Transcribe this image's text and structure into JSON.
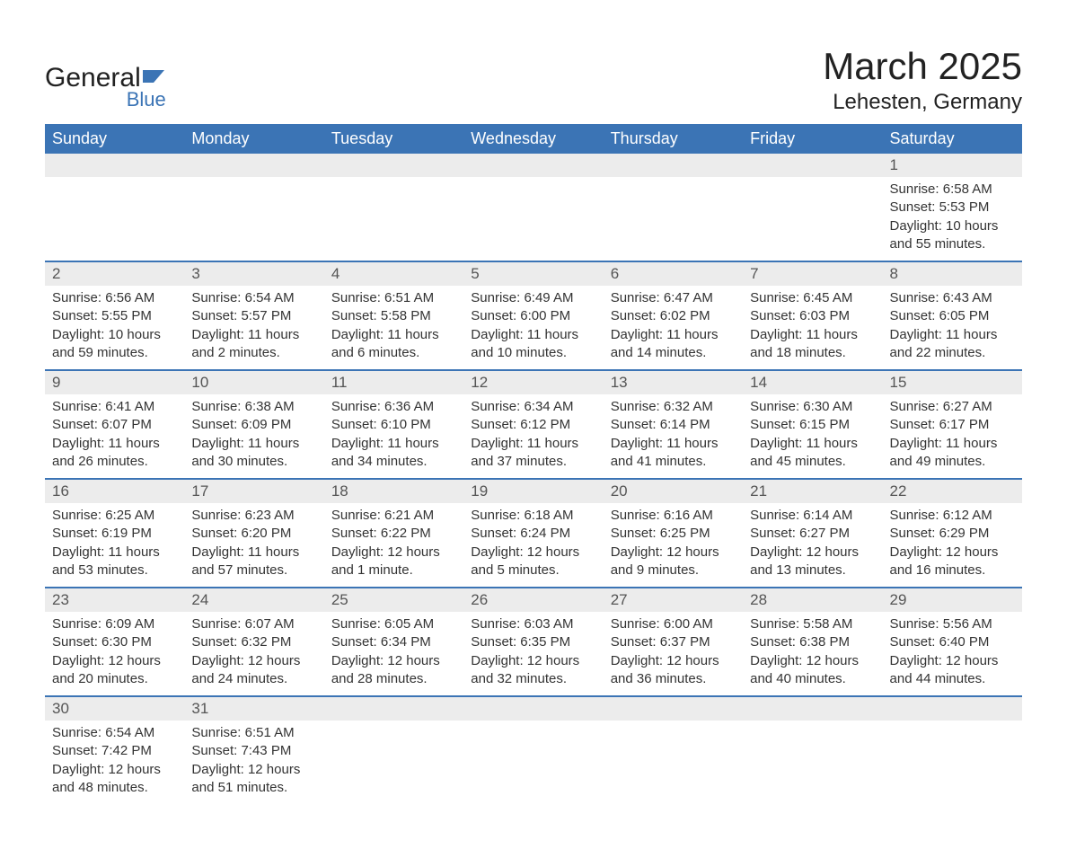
{
  "logo": {
    "text_general": "General",
    "text_blue": "Blue",
    "shape_color": "#3b74b5"
  },
  "header": {
    "month_title": "March 2025",
    "location": "Lehesten, Germany"
  },
  "colors": {
    "header_bg": "#3b74b5",
    "header_text": "#ffffff",
    "day_bg": "#ececec",
    "day_text": "#555555",
    "detail_text": "#333333",
    "row_border": "#3b74b5"
  },
  "days_of_week": [
    "Sunday",
    "Monday",
    "Tuesday",
    "Wednesday",
    "Thursday",
    "Friday",
    "Saturday"
  ],
  "weeks": [
    {
      "days": [
        null,
        null,
        null,
        null,
        null,
        null,
        {
          "num": "1",
          "sunrise": "Sunrise: 6:58 AM",
          "sunset": "Sunset: 5:53 PM",
          "daylight1": "Daylight: 10 hours",
          "daylight2": "and 55 minutes."
        }
      ]
    },
    {
      "days": [
        {
          "num": "2",
          "sunrise": "Sunrise: 6:56 AM",
          "sunset": "Sunset: 5:55 PM",
          "daylight1": "Daylight: 10 hours",
          "daylight2": "and 59 minutes."
        },
        {
          "num": "3",
          "sunrise": "Sunrise: 6:54 AM",
          "sunset": "Sunset: 5:57 PM",
          "daylight1": "Daylight: 11 hours",
          "daylight2": "and 2 minutes."
        },
        {
          "num": "4",
          "sunrise": "Sunrise: 6:51 AM",
          "sunset": "Sunset: 5:58 PM",
          "daylight1": "Daylight: 11 hours",
          "daylight2": "and 6 minutes."
        },
        {
          "num": "5",
          "sunrise": "Sunrise: 6:49 AM",
          "sunset": "Sunset: 6:00 PM",
          "daylight1": "Daylight: 11 hours",
          "daylight2": "and 10 minutes."
        },
        {
          "num": "6",
          "sunrise": "Sunrise: 6:47 AM",
          "sunset": "Sunset: 6:02 PM",
          "daylight1": "Daylight: 11 hours",
          "daylight2": "and 14 minutes."
        },
        {
          "num": "7",
          "sunrise": "Sunrise: 6:45 AM",
          "sunset": "Sunset: 6:03 PM",
          "daylight1": "Daylight: 11 hours",
          "daylight2": "and 18 minutes."
        },
        {
          "num": "8",
          "sunrise": "Sunrise: 6:43 AM",
          "sunset": "Sunset: 6:05 PM",
          "daylight1": "Daylight: 11 hours",
          "daylight2": "and 22 minutes."
        }
      ]
    },
    {
      "days": [
        {
          "num": "9",
          "sunrise": "Sunrise: 6:41 AM",
          "sunset": "Sunset: 6:07 PM",
          "daylight1": "Daylight: 11 hours",
          "daylight2": "and 26 minutes."
        },
        {
          "num": "10",
          "sunrise": "Sunrise: 6:38 AM",
          "sunset": "Sunset: 6:09 PM",
          "daylight1": "Daylight: 11 hours",
          "daylight2": "and 30 minutes."
        },
        {
          "num": "11",
          "sunrise": "Sunrise: 6:36 AM",
          "sunset": "Sunset: 6:10 PM",
          "daylight1": "Daylight: 11 hours",
          "daylight2": "and 34 minutes."
        },
        {
          "num": "12",
          "sunrise": "Sunrise: 6:34 AM",
          "sunset": "Sunset: 6:12 PM",
          "daylight1": "Daylight: 11 hours",
          "daylight2": "and 37 minutes."
        },
        {
          "num": "13",
          "sunrise": "Sunrise: 6:32 AM",
          "sunset": "Sunset: 6:14 PM",
          "daylight1": "Daylight: 11 hours",
          "daylight2": "and 41 minutes."
        },
        {
          "num": "14",
          "sunrise": "Sunrise: 6:30 AM",
          "sunset": "Sunset: 6:15 PM",
          "daylight1": "Daylight: 11 hours",
          "daylight2": "and 45 minutes."
        },
        {
          "num": "15",
          "sunrise": "Sunrise: 6:27 AM",
          "sunset": "Sunset: 6:17 PM",
          "daylight1": "Daylight: 11 hours",
          "daylight2": "and 49 minutes."
        }
      ]
    },
    {
      "days": [
        {
          "num": "16",
          "sunrise": "Sunrise: 6:25 AM",
          "sunset": "Sunset: 6:19 PM",
          "daylight1": "Daylight: 11 hours",
          "daylight2": "and 53 minutes."
        },
        {
          "num": "17",
          "sunrise": "Sunrise: 6:23 AM",
          "sunset": "Sunset: 6:20 PM",
          "daylight1": "Daylight: 11 hours",
          "daylight2": "and 57 minutes."
        },
        {
          "num": "18",
          "sunrise": "Sunrise: 6:21 AM",
          "sunset": "Sunset: 6:22 PM",
          "daylight1": "Daylight: 12 hours",
          "daylight2": "and 1 minute."
        },
        {
          "num": "19",
          "sunrise": "Sunrise: 6:18 AM",
          "sunset": "Sunset: 6:24 PM",
          "daylight1": "Daylight: 12 hours",
          "daylight2": "and 5 minutes."
        },
        {
          "num": "20",
          "sunrise": "Sunrise: 6:16 AM",
          "sunset": "Sunset: 6:25 PM",
          "daylight1": "Daylight: 12 hours",
          "daylight2": "and 9 minutes."
        },
        {
          "num": "21",
          "sunrise": "Sunrise: 6:14 AM",
          "sunset": "Sunset: 6:27 PM",
          "daylight1": "Daylight: 12 hours",
          "daylight2": "and 13 minutes."
        },
        {
          "num": "22",
          "sunrise": "Sunrise: 6:12 AM",
          "sunset": "Sunset: 6:29 PM",
          "daylight1": "Daylight: 12 hours",
          "daylight2": "and 16 minutes."
        }
      ]
    },
    {
      "days": [
        {
          "num": "23",
          "sunrise": "Sunrise: 6:09 AM",
          "sunset": "Sunset: 6:30 PM",
          "daylight1": "Daylight: 12 hours",
          "daylight2": "and 20 minutes."
        },
        {
          "num": "24",
          "sunrise": "Sunrise: 6:07 AM",
          "sunset": "Sunset: 6:32 PM",
          "daylight1": "Daylight: 12 hours",
          "daylight2": "and 24 minutes."
        },
        {
          "num": "25",
          "sunrise": "Sunrise: 6:05 AM",
          "sunset": "Sunset: 6:34 PM",
          "daylight1": "Daylight: 12 hours",
          "daylight2": "and 28 minutes."
        },
        {
          "num": "26",
          "sunrise": "Sunrise: 6:03 AM",
          "sunset": "Sunset: 6:35 PM",
          "daylight1": "Daylight: 12 hours",
          "daylight2": "and 32 minutes."
        },
        {
          "num": "27",
          "sunrise": "Sunrise: 6:00 AM",
          "sunset": "Sunset: 6:37 PM",
          "daylight1": "Daylight: 12 hours",
          "daylight2": "and 36 minutes."
        },
        {
          "num": "28",
          "sunrise": "Sunrise: 5:58 AM",
          "sunset": "Sunset: 6:38 PM",
          "daylight1": "Daylight: 12 hours",
          "daylight2": "and 40 minutes."
        },
        {
          "num": "29",
          "sunrise": "Sunrise: 5:56 AM",
          "sunset": "Sunset: 6:40 PM",
          "daylight1": "Daylight: 12 hours",
          "daylight2": "and 44 minutes."
        }
      ]
    },
    {
      "days": [
        {
          "num": "30",
          "sunrise": "Sunrise: 6:54 AM",
          "sunset": "Sunset: 7:42 PM",
          "daylight1": "Daylight: 12 hours",
          "daylight2": "and 48 minutes."
        },
        {
          "num": "31",
          "sunrise": "Sunrise: 6:51 AM",
          "sunset": "Sunset: 7:43 PM",
          "daylight1": "Daylight: 12 hours",
          "daylight2": "and 51 minutes."
        },
        null,
        null,
        null,
        null,
        null
      ]
    }
  ]
}
